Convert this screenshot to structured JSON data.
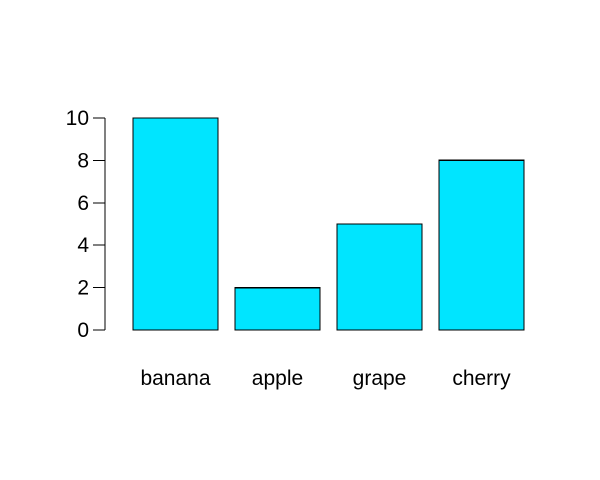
{
  "chart_data": {
    "type": "bar",
    "categories": [
      "banana",
      "apple",
      "grape",
      "cherry"
    ],
    "values": [
      10,
      2,
      5,
      8
    ],
    "title": "",
    "xlabel": "",
    "ylabel": "",
    "ylim": [
      0,
      10
    ],
    "yticks": [
      0,
      2,
      4,
      6,
      8,
      10
    ],
    "bar_color": "#00e5ff",
    "bar_border_color": "#000000",
    "grid": false,
    "legend": "none"
  }
}
